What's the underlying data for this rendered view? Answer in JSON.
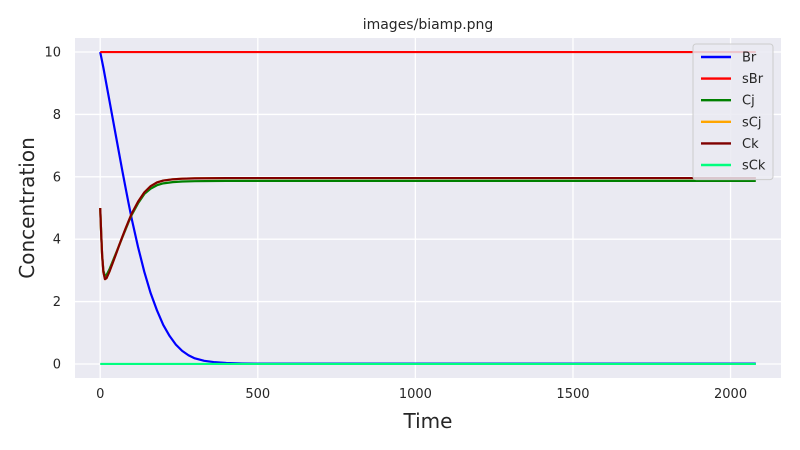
{
  "chart_data": {
    "type": "line",
    "title": "images/biamp.png",
    "xlabel": "Time",
    "ylabel": "Concentration",
    "xlim": [
      -80,
      2160
    ],
    "ylim": [
      -0.45,
      10.45
    ],
    "xticks": [
      0,
      500,
      1000,
      1500,
      2000
    ],
    "yticks": [
      0,
      2,
      4,
      6,
      8,
      10
    ],
    "grid": true,
    "legend_position": "top-right",
    "series": [
      {
        "name": "Br",
        "color": "#0000ff",
        "points": [
          [
            0,
            10
          ],
          [
            10,
            9.5
          ],
          [
            20,
            8.95
          ],
          [
            30,
            8.4
          ],
          [
            40,
            7.85
          ],
          [
            50,
            7.3
          ],
          [
            60,
            6.75
          ],
          [
            70,
            6.2
          ],
          [
            80,
            5.67
          ],
          [
            90,
            5.15
          ],
          [
            100,
            4.65
          ],
          [
            120,
            3.75
          ],
          [
            140,
            2.95
          ],
          [
            160,
            2.27
          ],
          [
            180,
            1.72
          ],
          [
            200,
            1.25
          ],
          [
            220,
            0.9
          ],
          [
            240,
            0.62
          ],
          [
            260,
            0.42
          ],
          [
            280,
            0.28
          ],
          [
            300,
            0.18
          ],
          [
            330,
            0.1
          ],
          [
            360,
            0.06
          ],
          [
            400,
            0.03
          ],
          [
            450,
            0.015
          ],
          [
            500,
            0.01
          ],
          [
            700,
            0.01
          ],
          [
            1000,
            0.01
          ],
          [
            1500,
            0.01
          ],
          [
            2080,
            0.01
          ]
        ]
      },
      {
        "name": "sBr",
        "color": "#ff0000",
        "points": [
          [
            0,
            10
          ],
          [
            2080,
            10
          ]
        ]
      },
      {
        "name": "Cj",
        "color": "#008000",
        "points": [
          [
            0,
            5
          ],
          [
            3,
            4.2
          ],
          [
            6,
            3.5
          ],
          [
            10,
            3.0
          ],
          [
            15,
            2.82
          ],
          [
            20,
            2.85
          ],
          [
            30,
            3.05
          ],
          [
            40,
            3.3
          ],
          [
            50,
            3.55
          ],
          [
            60,
            3.8
          ],
          [
            70,
            4.05
          ],
          [
            80,
            4.3
          ],
          [
            90,
            4.55
          ],
          [
            100,
            4.78
          ],
          [
            120,
            5.15
          ],
          [
            140,
            5.45
          ],
          [
            160,
            5.62
          ],
          [
            180,
            5.73
          ],
          [
            200,
            5.79
          ],
          [
            230,
            5.83
          ],
          [
            260,
            5.85
          ],
          [
            300,
            5.86
          ],
          [
            400,
            5.87
          ],
          [
            600,
            5.87
          ],
          [
            1000,
            5.87
          ],
          [
            2080,
            5.87
          ]
        ]
      },
      {
        "name": "sCj",
        "color": "#ffa500",
        "points": [
          [
            0,
            5
          ],
          [
            3,
            4.2
          ],
          [
            6,
            3.5
          ],
          [
            10,
            2.95
          ],
          [
            15,
            2.72
          ],
          [
            20,
            2.75
          ],
          [
            30,
            2.98
          ],
          [
            40,
            3.25
          ],
          [
            50,
            3.52
          ],
          [
            60,
            3.8
          ],
          [
            70,
            4.07
          ],
          [
            80,
            4.33
          ],
          [
            90,
            4.58
          ],
          [
            100,
            4.82
          ],
          [
            120,
            5.2
          ],
          [
            140,
            5.5
          ],
          [
            160,
            5.7
          ],
          [
            180,
            5.82
          ],
          [
            200,
            5.88
          ],
          [
            230,
            5.92
          ],
          [
            260,
            5.94
          ],
          [
            300,
            5.95
          ],
          [
            400,
            5.96
          ],
          [
            600,
            5.96
          ],
          [
            1000,
            5.96
          ],
          [
            2080,
            5.96
          ]
        ]
      },
      {
        "name": "Ck",
        "color": "#800000",
        "points": [
          [
            0,
            5
          ],
          [
            3,
            4.2
          ],
          [
            6,
            3.5
          ],
          [
            10,
            2.95
          ],
          [
            15,
            2.72
          ],
          [
            20,
            2.75
          ],
          [
            30,
            2.98
          ],
          [
            40,
            3.25
          ],
          [
            50,
            3.52
          ],
          [
            60,
            3.8
          ],
          [
            70,
            4.07
          ],
          [
            80,
            4.33
          ],
          [
            90,
            4.58
          ],
          [
            100,
            4.82
          ],
          [
            120,
            5.2
          ],
          [
            140,
            5.5
          ],
          [
            160,
            5.7
          ],
          [
            180,
            5.82
          ],
          [
            200,
            5.88
          ],
          [
            230,
            5.92
          ],
          [
            260,
            5.94
          ],
          [
            300,
            5.95
          ],
          [
            400,
            5.96
          ],
          [
            600,
            5.96
          ],
          [
            1000,
            5.96
          ],
          [
            2080,
            5.96
          ]
        ]
      },
      {
        "name": "sCk",
        "color": "#00ff7f",
        "points": [
          [
            0,
            0
          ],
          [
            2080,
            0
          ]
        ]
      }
    ]
  }
}
